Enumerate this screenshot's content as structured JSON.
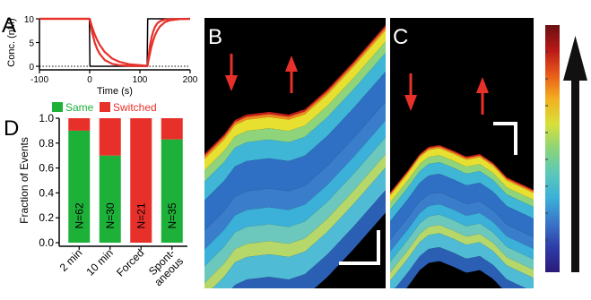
{
  "panels": {
    "a": "A",
    "b": "B",
    "c": "C",
    "d": "D"
  },
  "chart_data": [
    {
      "panel": "A",
      "type": "line",
      "xlabel": "Time (s)",
      "ylabel": "Conc. (nM)",
      "xlim": [
        -100,
        200
      ],
      "ylim": [
        0,
        10
      ],
      "xticks": [
        "-100",
        "0",
        "100",
        "200"
      ],
      "yticks": [
        "0",
        "5",
        "10"
      ],
      "colors": {
        "stimulus": "#000000",
        "response": "#e8302a"
      },
      "series": [
        {
          "role": "stimulus",
          "x": [
            -100,
            -0.5,
            0.5,
            114.5,
            115.5,
            200
          ],
          "y": [
            10,
            10,
            0,
            0,
            10,
            10
          ]
        },
        {
          "role": "response",
          "x": [
            -100,
            0,
            5,
            10,
            15,
            20,
            30,
            45,
            60,
            80,
            115,
            117,
            120,
            123,
            126,
            130,
            135,
            140,
            150,
            170,
            200
          ],
          "y": [
            10,
            10,
            7.1,
            5.0,
            3.6,
            2.6,
            1.3,
            0.5,
            0.2,
            0.1,
            0.05,
            1.8,
            4.3,
            6.0,
            7.2,
            8.3,
            9.1,
            9.5,
            9.85,
            9.97,
            10
          ]
        },
        {
          "role": "response",
          "x": [
            -100,
            0,
            5,
            10,
            15,
            20,
            30,
            45,
            60,
            80,
            115,
            118,
            122,
            126,
            130,
            135,
            140,
            150,
            160,
            180,
            200
          ],
          "y": [
            10,
            10,
            8.2,
            6.7,
            5.5,
            4.5,
            3.0,
            1.6,
            0.9,
            0.4,
            0.1,
            1.7,
            3.7,
            5.3,
            6.5,
            7.6,
            8.4,
            9.3,
            9.7,
            9.95,
            10
          ]
        }
      ]
    },
    {
      "panel": "D",
      "type": "bar",
      "ylabel": "Fraction of Events",
      "ylim": [
        0,
        1
      ],
      "yticks": [
        "0.0",
        "0.2",
        "0.4",
        "0.6",
        "0.8",
        "1.0"
      ],
      "categories": [
        "2 min",
        "10 min",
        "Forced",
        "Spont-\naneous"
      ],
      "bar_labels": [
        "N=62",
        "N=30",
        "N=21",
        "N=35"
      ],
      "legend_position": "top",
      "series": [
        {
          "name": "Same",
          "color": "#1eb13a",
          "values": [
            0.9,
            0.7,
            0.0,
            0.83
          ]
        },
        {
          "name": "Switched",
          "color": "#e8302a",
          "values": [
            0.1,
            0.3,
            1.0,
            0.17
          ]
        }
      ]
    }
  ],
  "kymographs": {
    "b": {
      "arrows": [
        "down",
        "up"
      ]
    },
    "c": {
      "arrows": [
        "down",
        "up"
      ]
    }
  },
  "colorbar": {
    "colors": [
      "#2a1a7a",
      "#2e3ca8",
      "#3a75c8",
      "#3bb0d8",
      "#5bc8b8",
      "#8bd47a",
      "#d8e03a",
      "#f2b020",
      "#e85a1a",
      "#b81818",
      "#6a1010"
    ],
    "arrow": "up"
  }
}
